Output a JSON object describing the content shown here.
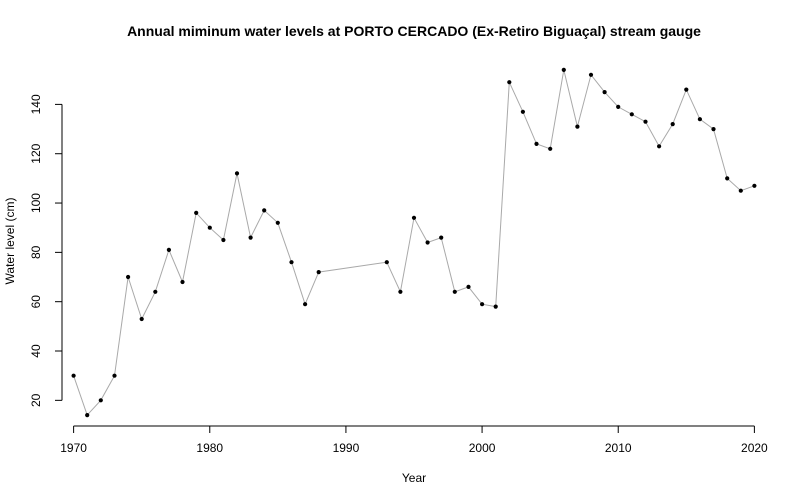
{
  "chart_data": {
    "type": "line",
    "title": "Annual miminum water levels at PORTO CERCADO (Ex-Retiro Biguaçal) stream gauge",
    "xlabel": "Year",
    "ylabel": "Water level (cm)",
    "xlim": [
      1969,
      2021
    ],
    "ylim": [
      10,
      158
    ],
    "xticks": [
      1970,
      1980,
      1990,
      2000,
      2010,
      2020
    ],
    "yticks": [
      20,
      40,
      60,
      80,
      100,
      120,
      140
    ],
    "grid": false,
    "colors": {
      "line": "#a9a9a9",
      "points": "#000000"
    },
    "segments": [
      {
        "x": [
          1970,
          1971,
          1972,
          1973,
          1974,
          1975,
          1976,
          1977,
          1978,
          1979,
          1980,
          1981,
          1982,
          1983,
          1984,
          1985,
          1986,
          1987,
          1988,
          1993,
          1994,
          1995,
          1996,
          1997,
          1998,
          1999,
          2000,
          2001,
          2002,
          2003,
          2004,
          2005,
          2006,
          2007,
          2008,
          2009,
          2010,
          2011,
          2012,
          2013,
          2014,
          2015,
          2016,
          2017,
          2018,
          2019,
          2020
        ],
        "y": [
          30,
          14,
          20,
          30,
          70,
          53,
          64,
          81,
          68,
          96,
          90,
          85,
          112,
          86,
          97,
          92,
          76,
          59,
          72,
          76,
          64,
          94,
          84,
          86,
          64,
          66,
          59,
          58,
          149,
          137,
          124,
          122,
          154,
          131,
          152,
          145,
          139,
          136,
          133,
          123,
          132,
          146,
          134,
          130,
          110,
          105,
          107
        ]
      }
    ]
  }
}
